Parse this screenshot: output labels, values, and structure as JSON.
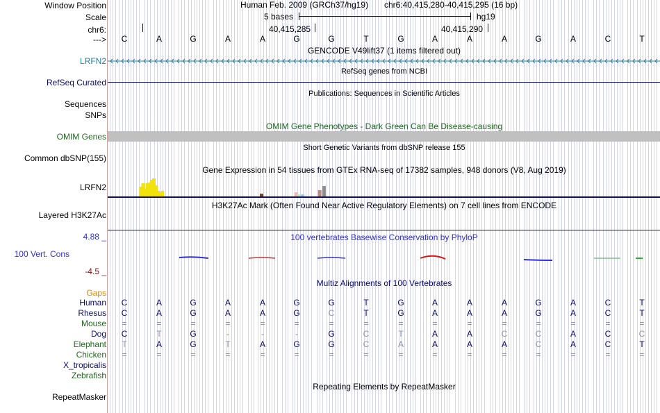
{
  "ruler": {
    "window_position_label": "Window Position",
    "scale_label": "Scale",
    "chrom_label": "chr6:",
    "arrow_label": "--->",
    "assembly": "Human Feb. 2009 (GRCh37/hg19)",
    "position": "chr6:40,415,280-40,415,295 (16 bp)",
    "scale_text": "5 bases",
    "db": "hg19",
    "tick_1": "40,415,285",
    "tick_2": "40,415,290"
  },
  "sequence": [
    "C",
    "A",
    "G",
    "A",
    "A",
    "G",
    "G",
    "T",
    "G",
    "A",
    "A",
    "A",
    "G",
    "A",
    "C",
    "T"
  ],
  "colors": {
    "gene_teal": "#20809f",
    "navy": "#0b0b6e",
    "omim_green": "#1f6a1f",
    "phylop_blue": "#3030d0",
    "gaps_orange": "#e08800",
    "neg_red": "#801515",
    "gtex_yellow": "#f0e20a"
  },
  "tracks": {
    "gencode": {
      "title": "GENCODE V49lift37 (1 items filtered out)",
      "label": "LRFN2"
    },
    "refseq": {
      "title": "RefSeq genes from NCBI",
      "label": "RefSeq Curated"
    },
    "pubs": {
      "title": "Publications: Sequences in Scientific Articles",
      "label": "Sequences"
    },
    "snps_label": "SNPs",
    "omim": {
      "title": "OMIM Gene Phenotypes - Dark Green Can Be Disease-causing",
      "label": "OMIM Genes"
    },
    "dbsnp": {
      "title": "Short Genetic Variants from dbSNP release 155",
      "label": "Common dbSNP(155)"
    },
    "gtex": {
      "title": "Gene Expression in 54 tissues from GTEx RNA-seq of 17382 samples, 948 donors (V8, Aug 2019)",
      "label": "LRFN2"
    },
    "h3k27ac": {
      "title": "H3K27Ac Mark (Often Found Near Active Regulatory Elements) on 7 cell lines from ENCODE",
      "label": "Layered H3K27Ac"
    },
    "phylop": {
      "title": "100 vertebrates Basewise Conservation by PhyloP",
      "label": "100 Vert. Cons",
      "max": "4.88 _",
      "min": "-4.5 _"
    },
    "multiz": {
      "title": "Multiz Alignments of 100 Vertebrates",
      "gaps_label": "Gaps"
    },
    "repeat": {
      "title": "Repeating Elements by RepeatMasker",
      "label": "RepeatMasker"
    }
  },
  "alignment": [
    {
      "species": "Human",
      "bases": [
        "C",
        "A",
        "G",
        "A",
        "A",
        "G",
        "G",
        "T",
        "G",
        "A",
        "A",
        "A",
        "G",
        "A",
        "C",
        "T"
      ]
    },
    {
      "species": "Rhesus",
      "bases": [
        "C",
        "A",
        "G",
        "A",
        "A",
        "G",
        "C",
        "T",
        "G",
        "A",
        "A",
        "A",
        "G",
        "A",
        "C",
        "T"
      ]
    },
    {
      "species": "Mouse",
      "bases": [
        "=",
        "=",
        "=",
        "=",
        "=",
        "=",
        "=",
        "=",
        "=",
        "=",
        "=",
        "=",
        "=",
        "=",
        "=",
        "="
      ]
    },
    {
      "species": "Dog",
      "bases": [
        "C",
        "T",
        "G",
        "-",
        "-",
        "-",
        "G",
        "C",
        "T",
        "A",
        "A",
        "C",
        "C",
        "A",
        "C",
        "C"
      ]
    },
    {
      "species": "Elephant",
      "bases": [
        "T",
        "A",
        "G",
        "T",
        "A",
        "G",
        "G",
        "C",
        "A",
        "A",
        "A",
        "A",
        "C",
        "A",
        "C",
        "T"
      ]
    },
    {
      "species": "Chicken",
      "bases": [
        "=",
        "=",
        "=",
        "=",
        "=",
        "=",
        "=",
        "=",
        "=",
        "=",
        "=",
        "=",
        "=",
        "=",
        "=",
        "="
      ]
    },
    {
      "species": "X_tropicalis",
      "bases": []
    },
    {
      "species": "Zebrafish",
      "bases": []
    }
  ],
  "gtex_values": [
    0,
    0,
    0,
    0,
    0,
    0,
    0,
    0,
    0,
    0,
    0,
    0,
    0,
    0,
    14,
    19,
    12,
    19,
    20,
    24,
    26,
    16,
    8,
    6,
    8,
    0,
    0,
    0,
    0,
    0,
    0,
    0,
    0,
    0,
    0,
    0,
    0,
    0,
    0,
    0,
    0,
    0,
    0,
    0,
    0,
    0,
    0,
    0,
    0,
    0,
    0,
    0,
    0,
    0,
    0,
    0,
    0,
    0,
    0,
    0,
    0,
    0,
    0,
    0,
    0,
    0,
    0,
    0,
    0,
    0,
    4,
    0,
    0,
    0,
    0,
    0,
    0,
    0,
    0,
    0,
    0,
    0,
    0,
    0,
    0,
    0,
    6,
    3,
    0,
    3,
    0,
    0,
    0,
    0,
    0,
    0,
    0,
    9,
    0,
    15,
    0,
    0
  ]
}
